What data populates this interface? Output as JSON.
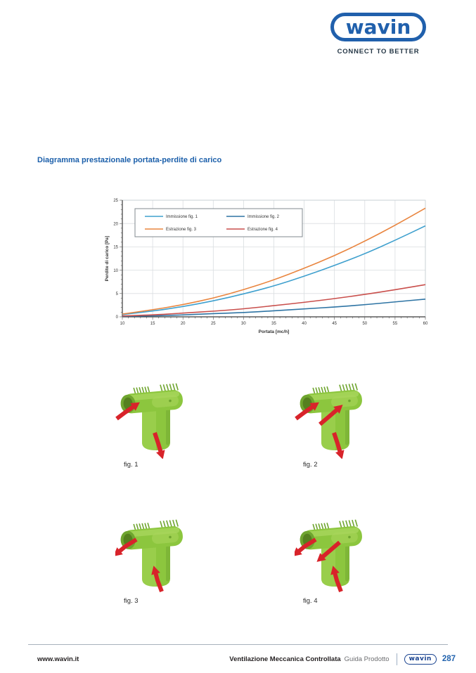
{
  "header": {
    "logo_text": "wavin",
    "tagline": "CONNECT TO BETTER"
  },
  "title": "Diagramma prestazionale portata-perdite di carico",
  "figures": [
    {
      "label": "fig. 1",
      "arrows": [
        "in-left",
        "out-bottom"
      ]
    },
    {
      "label": "fig. 2",
      "arrows": [
        "in-left",
        "in-right",
        "out-bottom"
      ]
    },
    {
      "label": "fig. 3",
      "arrows": [
        "out-left",
        "in-bottom"
      ]
    },
    {
      "label": "fig. 4",
      "arrows": [
        "out-left",
        "out-right",
        "in-bottom"
      ]
    }
  ],
  "footer": {
    "website": "www.wavin.it",
    "doc_title": "Ventilazione Meccanica Controllata",
    "doc_subtitle": "Guida Prodotto",
    "logo_text": "wavin",
    "page_number": "287"
  },
  "colors": {
    "brand_blue": "#2060AC",
    "title_blue": "#1B5FAA",
    "page_number_blue": "#2263AE",
    "fitting_green": "#8CC63E",
    "fitting_green_dark": "#6FA52F",
    "fitting_green_light": "#A8D65C",
    "fitting_hole": "#55801F",
    "arrow_red": "#D8232A",
    "grid_gray": "#D9DDE0",
    "axis_dark": "#3A3A3A"
  },
  "chart_data": {
    "type": "line",
    "title": "",
    "xlabel": "Portata [mc/h]",
    "ylabel": "Perdite di carico [Pa]",
    "xlim": [
      10,
      60
    ],
    "ylim": [
      0,
      25
    ],
    "x_ticks": [
      10,
      15,
      20,
      25,
      30,
      35,
      40,
      45,
      50,
      55,
      60
    ],
    "y_ticks": [
      0,
      5,
      10,
      15,
      20,
      25
    ],
    "grid": true,
    "legend_position": "upper-left",
    "x": [
      10,
      15,
      20,
      25,
      30,
      35,
      40,
      45,
      50,
      55,
      60
    ],
    "series": [
      {
        "name": "Immissione fig. 1",
        "color": "#3FA0CE",
        "values": [
          0.5,
          1.2,
          2.2,
          3.4,
          4.9,
          6.6,
          8.7,
          11.0,
          13.5,
          16.4,
          19.5
        ]
      },
      {
        "name": "Immissione fig. 2",
        "color": "#2E74A4",
        "values": [
          0.1,
          0.2,
          0.4,
          0.7,
          0.9,
          1.3,
          1.7,
          2.1,
          2.6,
          3.2,
          3.8
        ]
      },
      {
        "name": "Estrazione fig. 3",
        "color": "#E9853F",
        "values": [
          0.6,
          1.5,
          2.6,
          4.0,
          5.8,
          7.9,
          10.4,
          13.1,
          16.2,
          19.6,
          23.3
        ]
      },
      {
        "name": "Estrazione fig. 4",
        "color": "#C94F4C",
        "values": [
          0.2,
          0.4,
          0.8,
          1.2,
          1.7,
          2.4,
          3.1,
          3.9,
          4.8,
          5.8,
          6.9
        ]
      }
    ]
  }
}
